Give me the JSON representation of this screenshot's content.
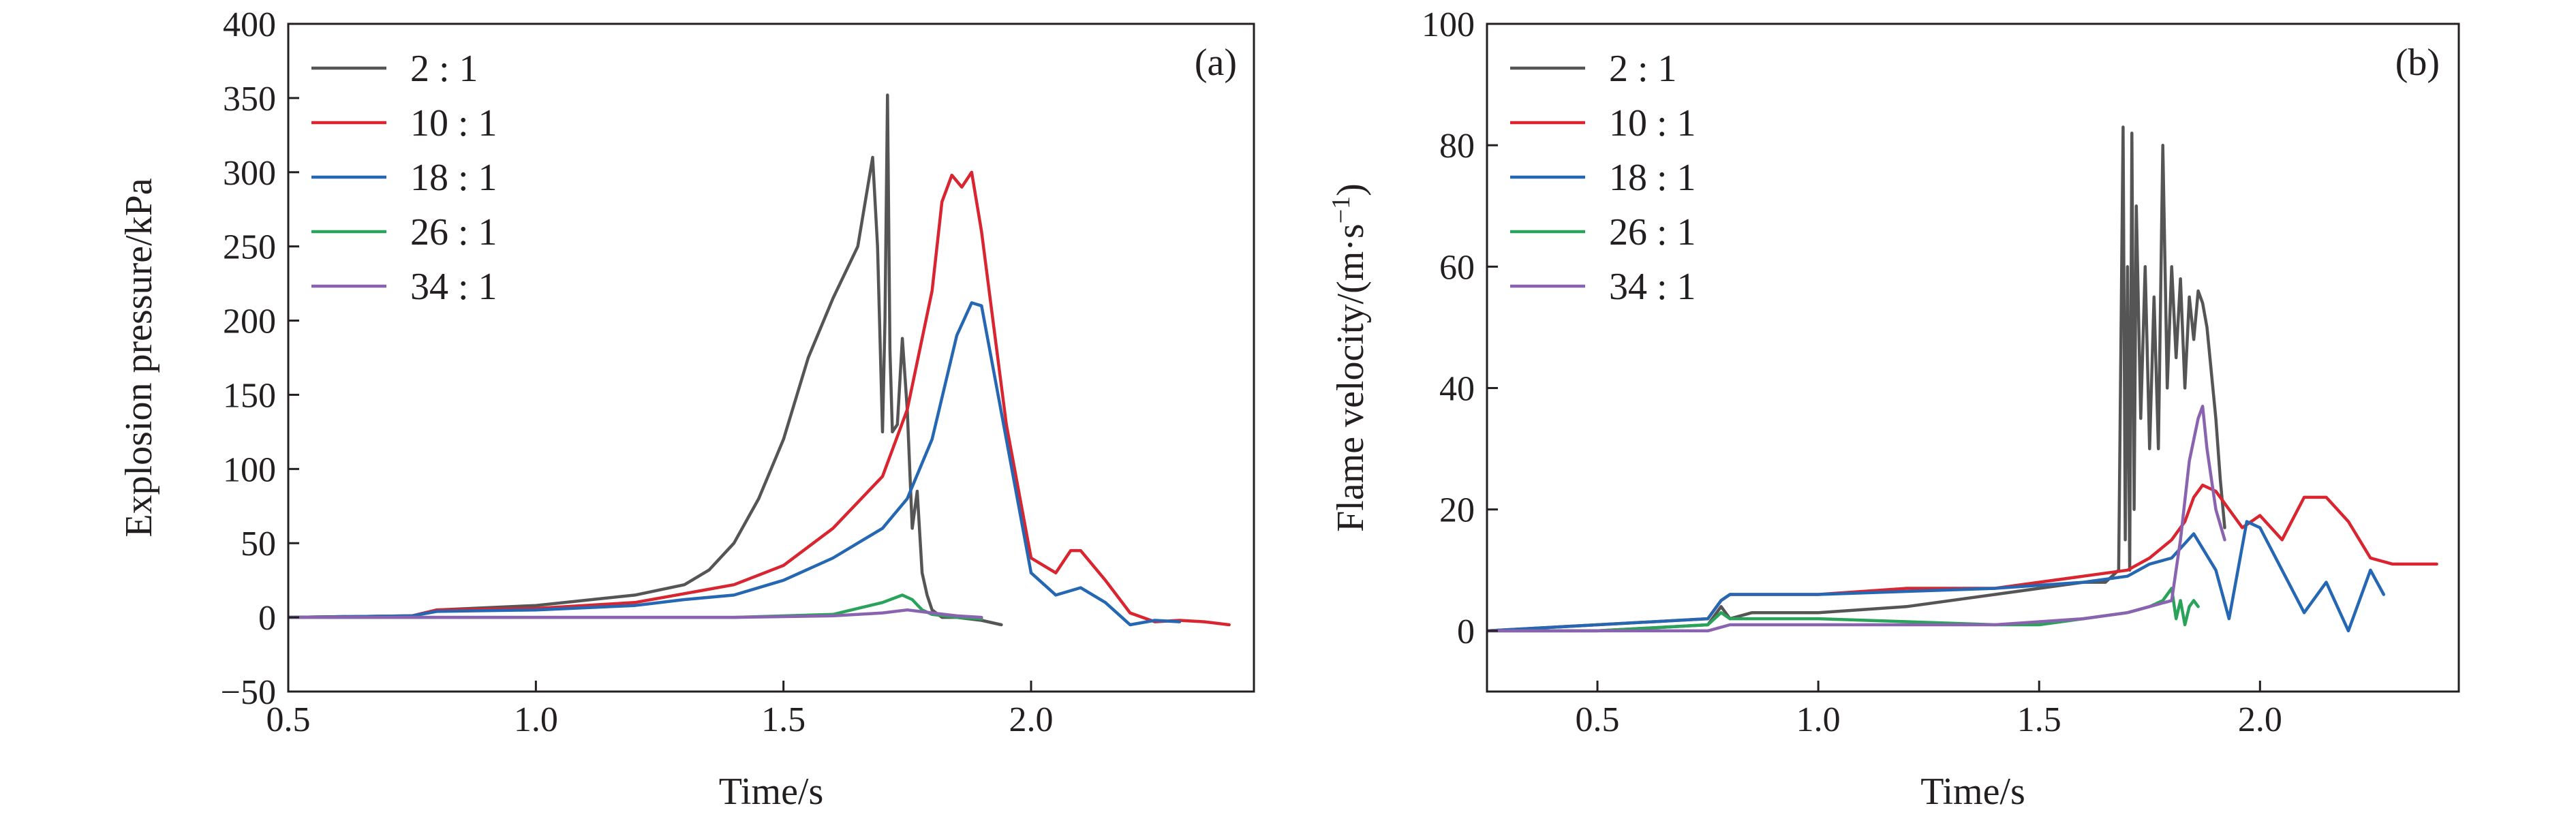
{
  "chart_data": [
    {
      "type": "line",
      "panel_label": "(a)",
      "xlabel": "Time/s",
      "ylabel": "Explosion pressure/kPa",
      "xlim": [
        0.5,
        2.45
      ],
      "ylim": [
        -50,
        400
      ],
      "xticks": [
        0.5,
        1.0,
        1.5,
        2.0
      ],
      "xtick_labels": [
        "0.5",
        "1.0",
        "1.5",
        "2.0"
      ],
      "yticks": [
        -50,
        0,
        50,
        100,
        150,
        200,
        250,
        300,
        350,
        400
      ],
      "ytick_labels": [
        "−50",
        "0",
        "50",
        "100",
        "150",
        "200",
        "250",
        "300",
        "350",
        "400"
      ],
      "grid": false,
      "legend_position": "top-left",
      "series": [
        {
          "name": "2 : 1",
          "color": "#555555",
          "x": [
            0.5,
            0.75,
            0.8,
            1.0,
            1.2,
            1.3,
            1.35,
            1.4,
            1.45,
            1.5,
            1.55,
            1.6,
            1.65,
            1.68,
            1.69,
            1.7,
            1.705,
            1.71,
            1.715,
            1.72,
            1.73,
            1.74,
            1.75,
            1.76,
            1.77,
            1.78,
            1.79,
            1.8,
            1.82,
            1.85,
            1.9,
            1.94
          ],
          "y": [
            0,
            1,
            5,
            8,
            15,
            22,
            32,
            50,
            80,
            120,
            175,
            215,
            250,
            310,
            250,
            125,
            200,
            352,
            180,
            125,
            130,
            188,
            140,
            60,
            85,
            30,
            15,
            5,
            0,
            0,
            -2,
            -5
          ]
        },
        {
          "name": "10 : 1",
          "color": "#d9252f",
          "x": [
            0.5,
            0.75,
            0.8,
            1.0,
            1.2,
            1.4,
            1.5,
            1.6,
            1.7,
            1.75,
            1.8,
            1.82,
            1.84,
            1.86,
            1.88,
            1.9,
            1.95,
            2.0,
            2.05,
            2.08,
            2.1,
            2.15,
            2.2,
            2.25,
            2.3,
            2.35,
            2.4
          ],
          "y": [
            0,
            1,
            5,
            6,
            10,
            22,
            35,
            60,
            95,
            140,
            220,
            280,
            298,
            290,
            300,
            260,
            130,
            40,
            30,
            45,
            45,
            25,
            3,
            -3,
            -2,
            -3,
            -5
          ]
        },
        {
          "name": "18 : 1",
          "color": "#2567b2",
          "x": [
            0.5,
            0.75,
            0.8,
            1.0,
            1.2,
            1.3,
            1.4,
            1.5,
            1.6,
            1.7,
            1.75,
            1.8,
            1.85,
            1.88,
            1.9,
            1.95,
            2.0,
            2.05,
            2.1,
            2.15,
            2.2,
            2.25,
            2.3
          ],
          "y": [
            0,
            1,
            4,
            5,
            8,
            12,
            15,
            25,
            40,
            60,
            80,
            120,
            190,
            212,
            210,
            120,
            30,
            15,
            20,
            10,
            -5,
            -2,
            -3
          ]
        },
        {
          "name": "26 : 1",
          "color": "#2aa35a",
          "x": [
            0.5,
            0.8,
            1.0,
            1.2,
            1.4,
            1.6,
            1.65,
            1.7,
            1.74,
            1.76,
            1.78,
            1.8,
            1.85,
            1.9
          ],
          "y": [
            0,
            0,
            0,
            0,
            0,
            2,
            6,
            10,
            15,
            12,
            5,
            2,
            0,
            -1
          ]
        },
        {
          "name": "34 : 1",
          "color": "#8a63b0",
          "x": [
            0.5,
            0.8,
            1.0,
            1.2,
            1.4,
            1.6,
            1.7,
            1.75,
            1.8,
            1.85,
            1.9
          ],
          "y": [
            0,
            0,
            0,
            0,
            0,
            1,
            3,
            5,
            3,
            1,
            0
          ]
        }
      ]
    },
    {
      "type": "line",
      "panel_label": "(b)",
      "xlabel": "Time/s",
      "ylabel": "Flame velocity/(m·s",
      "ylabel_superscript": "−1",
      "ylabel_suffix": ")",
      "xlim": [
        0.25,
        2.45
      ],
      "ylim": [
        -10,
        100
      ],
      "xticks": [
        0.5,
        1.0,
        1.5,
        2.0
      ],
      "xtick_labels": [
        "0.5",
        "1.0",
        "1.5",
        "2.0"
      ],
      "yticks": [
        0,
        20,
        40,
        60,
        80,
        100
      ],
      "ytick_labels": [
        "0",
        "20",
        "40",
        "60",
        "80",
        "100"
      ],
      "grid": false,
      "legend_position": "top-left",
      "series": [
        {
          "name": "2 : 1",
          "color": "#555555",
          "x": [
            0.25,
            0.5,
            0.75,
            0.78,
            0.8,
            0.85,
            1.0,
            1.2,
            1.4,
            1.6,
            1.65,
            1.68,
            1.69,
            1.695,
            1.7,
            1.705,
            1.71,
            1.715,
            1.72,
            1.73,
            1.74,
            1.75,
            1.76,
            1.77,
            1.78,
            1.79,
            1.8,
            1.81,
            1.82,
            1.83,
            1.84,
            1.85,
            1.86,
            1.87,
            1.88,
            1.9,
            1.91,
            1.92
          ],
          "y": [
            0,
            0,
            1,
            4,
            2,
            3,
            3,
            4,
            6,
            8,
            8,
            10,
            83,
            15,
            60,
            10,
            82,
            20,
            70,
            35,
            60,
            30,
            55,
            30,
            80,
            40,
            60,
            45,
            58,
            40,
            55,
            48,
            56,
            54,
            50,
            35,
            25,
            17
          ]
        },
        {
          "name": "10 : 1",
          "color": "#d9252f",
          "x": [
            0.25,
            0.5,
            0.75,
            0.78,
            0.8,
            1.0,
            1.2,
            1.4,
            1.6,
            1.7,
            1.75,
            1.8,
            1.83,
            1.85,
            1.87,
            1.9,
            1.93,
            1.96,
            2.0,
            2.05,
            2.1,
            2.15,
            2.2,
            2.25,
            2.3,
            2.35,
            2.4
          ],
          "y": [
            0,
            1,
            2,
            5,
            6,
            6,
            7,
            7,
            9,
            10,
            12,
            15,
            18,
            22,
            24,
            23,
            20,
            17,
            19,
            15,
            22,
            22,
            18,
            12,
            11,
            11,
            11
          ]
        },
        {
          "name": "18 : 1",
          "color": "#2567b2",
          "x": [
            0.25,
            0.5,
            0.75,
            0.78,
            0.8,
            1.0,
            1.2,
            1.4,
            1.6,
            1.7,
            1.75,
            1.8,
            1.85,
            1.9,
            1.93,
            1.95,
            1.97,
            2.0,
            2.05,
            2.1,
            2.15,
            2.2,
            2.25,
            2.28
          ],
          "y": [
            0,
            1,
            2,
            5,
            6,
            6,
            6.5,
            7,
            8,
            9,
            11,
            12,
            16,
            10,
            2,
            10,
            18,
            17,
            10,
            3,
            8,
            0,
            10,
            6
          ]
        },
        {
          "name": "26 : 1",
          "color": "#2aa35a",
          "x": [
            0.25,
            0.5,
            0.75,
            0.78,
            0.8,
            1.0,
            1.2,
            1.4,
            1.5,
            1.6,
            1.7,
            1.75,
            1.78,
            1.8,
            1.81,
            1.82,
            1.83,
            1.84,
            1.85,
            1.86
          ],
          "y": [
            0,
            0,
            1,
            3,
            2,
            2,
            1.5,
            1,
            1,
            2,
            3,
            4,
            5,
            7,
            2,
            5,
            1,
            4,
            5,
            4
          ]
        },
        {
          "name": "34 : 1",
          "color": "#8a63b0",
          "x": [
            0.25,
            0.5,
            0.75,
            0.8,
            1.0,
            1.2,
            1.4,
            1.6,
            1.7,
            1.75,
            1.8,
            1.82,
            1.84,
            1.86,
            1.87,
            1.88,
            1.9,
            1.92
          ],
          "y": [
            0,
            0,
            0,
            1,
            1,
            1,
            1,
            2,
            3,
            4,
            5,
            15,
            28,
            35,
            37,
            30,
            20,
            15
          ]
        }
      ]
    }
  ]
}
